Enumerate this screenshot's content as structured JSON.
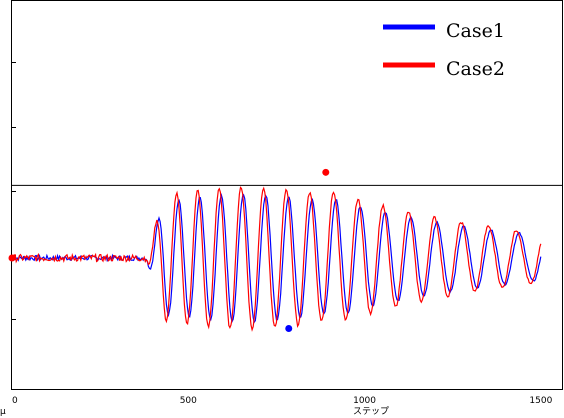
{
  "chart_data": {
    "type": "line",
    "title": "",
    "xlabel": "ステップ",
    "ylabel": "μ",
    "x_tick_labels": [
      "0",
      "500",
      "1000",
      "1500"
    ],
    "x_ticks": [
      0,
      500,
      1000,
      1500
    ],
    "xlim": [
      0,
      1560
    ],
    "ylim": [
      -1.3,
      2.55
    ],
    "grid": false,
    "legend_position": "top-right",
    "threshold_line": {
      "y": 0.72,
      "color": "#000000"
    },
    "series": [
      {
        "name": "Case1",
        "color": "#0000ff",
        "min_point": {
          "x": 785,
          "y": -0.7
        }
      },
      {
        "name": "Case2",
        "color": "#ff0000",
        "max_point": {
          "x": 890,
          "y": 0.85
        },
        "start_point": {
          "x": 0,
          "y": 0
        }
      }
    ]
  }
}
